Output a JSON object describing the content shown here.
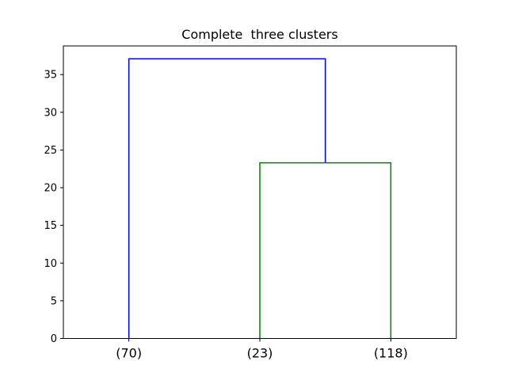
{
  "chart_data": {
    "type": "dendrogram",
    "title": "Complete  three clusters",
    "xlabel": "",
    "ylabel": "",
    "ylim": [
      0,
      38.8
    ],
    "yticks": [
      0,
      5,
      10,
      15,
      20,
      25,
      30,
      35
    ],
    "leaves": [
      "(70)",
      "(23)",
      "(118)"
    ],
    "links": [
      {
        "left_leaf": 1,
        "right_leaf": 2,
        "height": 23.3,
        "color": "#008000"
      },
      {
        "left_leaf": 0,
        "right_leaf_pair": [
          1,
          2
        ],
        "height": 37.1,
        "color": "#0000ff"
      }
    ],
    "grid": false,
    "legend": "none"
  }
}
